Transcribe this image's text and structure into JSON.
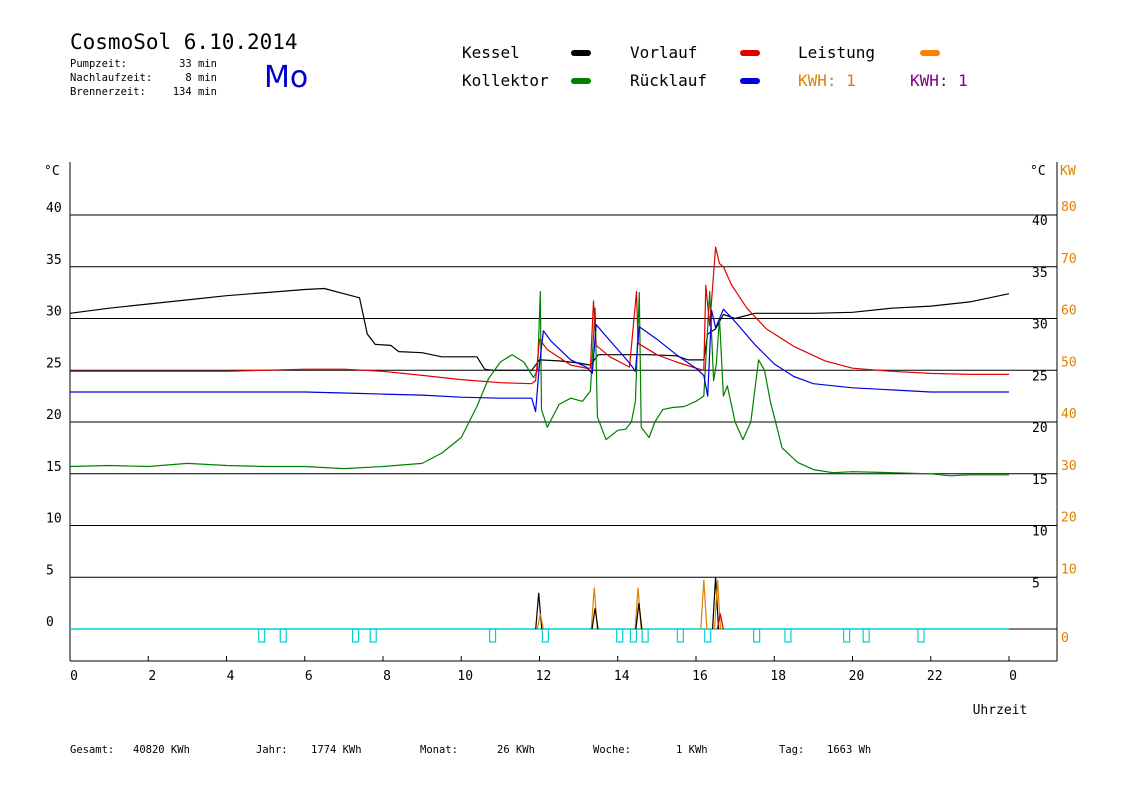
{
  "header": {
    "title": "CosmoSol 6.10.2014",
    "day": "Mo",
    "info": [
      {
        "label": "Pumpzeit:",
        "value": "33 min"
      },
      {
        "label": "Nachlaufzeit:",
        "value": "8 min"
      },
      {
        "label": "Brennerzeit:",
        "value": "134 min"
      }
    ]
  },
  "legend": {
    "kessel": {
      "label": "Kessel",
      "color": "#000000"
    },
    "kollektor": {
      "label": "Kollektor",
      "color": "#008000"
    },
    "vorlauf": {
      "label": "Vorlauf",
      "color": "#e00000"
    },
    "ruecklauf": {
      "label": "Rücklauf",
      "color": "#0000e0"
    },
    "leistung": {
      "label": "Leistung",
      "color": "#ff8000"
    },
    "kwh1": {
      "label": "KWH: 1",
      "color": "#e08000"
    },
    "kwh2": {
      "label": "KWH: 1",
      "color": "#800080"
    }
  },
  "footer": {
    "gesamt_label": "Gesamt:",
    "gesamt_value": "40820 KWh",
    "jahr_label": "Jahr:",
    "jahr_value": "1774 KWh",
    "monat_label": "Monat:",
    "monat_value": "26 KWh",
    "woche_label": "Woche:",
    "woche_value": "1 KWh",
    "tag_label": "Tag:",
    "tag_value": "1663 Wh"
  },
  "chart_data": {
    "type": "line",
    "xlabel": "Uhrzeit",
    "ylabel_left": "°C",
    "ylabel_right_temp": "°C",
    "ylabel_right_power": "KW",
    "xlim": [
      0,
      24
    ],
    "ylim": [
      0,
      40
    ],
    "x_ticks": [
      "0",
      "2",
      "4",
      "6",
      "8",
      "10",
      "12",
      "14",
      "16",
      "18",
      "20",
      "22",
      "0"
    ],
    "y_ticks_left": [
      "0",
      "5",
      "10",
      "15",
      "20",
      "25",
      "30",
      "35",
      "40"
    ],
    "y_ticks_right_temp": [
      "5",
      "10",
      "15",
      "20",
      "25",
      "30",
      "35",
      "40"
    ],
    "y_ticks_right_power": [
      "0",
      "10",
      "20",
      "30",
      "40",
      "50",
      "60",
      "70",
      "80"
    ],
    "colors": {
      "power_axis": "#e08000",
      "pump_marker": "#00d0d0",
      "leistung": "#ff8000"
    },
    "grid": true,
    "series": [
      {
        "name": "Kessel",
        "color": "#000000",
        "points": [
          [
            0,
            30.5
          ],
          [
            1,
            31
          ],
          [
            2,
            31.4
          ],
          [
            3,
            31.8
          ],
          [
            4,
            32.2
          ],
          [
            5,
            32.5
          ],
          [
            6,
            32.8
          ],
          [
            6.5,
            32.9
          ],
          [
            7,
            32.4
          ],
          [
            7.4,
            32
          ],
          [
            7.6,
            28.5
          ],
          [
            7.8,
            27.5
          ],
          [
            8.2,
            27.4
          ],
          [
            8.4,
            26.8
          ],
          [
            9,
            26.7
          ],
          [
            9.5,
            26.3
          ],
          [
            10.4,
            26.3
          ],
          [
            10.6,
            25.1
          ],
          [
            10.8,
            25
          ],
          [
            11.8,
            25
          ],
          [
            12,
            26
          ],
          [
            12.5,
            25.9
          ],
          [
            13,
            25.7
          ],
          [
            13.3,
            25.5
          ],
          [
            13.5,
            26.5
          ],
          [
            14.5,
            26.5
          ],
          [
            14.8,
            26.5
          ],
          [
            15.5,
            26.4
          ],
          [
            15.8,
            26
          ],
          [
            16.2,
            26
          ],
          [
            16.3,
            28.5
          ],
          [
            16.5,
            29
          ],
          [
            16.7,
            30.4
          ],
          [
            17,
            30
          ],
          [
            17.5,
            30.5
          ],
          [
            18,
            30.5
          ],
          [
            19,
            30.5
          ],
          [
            20,
            30.6
          ],
          [
            21,
            31
          ],
          [
            22,
            31.2
          ],
          [
            23,
            31.6
          ],
          [
            24,
            32.4
          ]
        ]
      },
      {
        "name": "Kollektor",
        "color": "#008000",
        "points": [
          [
            0,
            15.7
          ],
          [
            1,
            15.8
          ],
          [
            2,
            15.7
          ],
          [
            3,
            16
          ],
          [
            4,
            15.8
          ],
          [
            5,
            15.7
          ],
          [
            6,
            15.7
          ],
          [
            7,
            15.5
          ],
          [
            8,
            15.7
          ],
          [
            9,
            16
          ],
          [
            9.5,
            17
          ],
          [
            10,
            18.5
          ],
          [
            10.4,
            21.5
          ],
          [
            10.7,
            24.2
          ],
          [
            11,
            25.8
          ],
          [
            11.3,
            26.5
          ],
          [
            11.6,
            25.8
          ],
          [
            11.85,
            24.3
          ],
          [
            11.95,
            25
          ],
          [
            12.02,
            32.6
          ],
          [
            12.05,
            21.2
          ],
          [
            12.2,
            19.5
          ],
          [
            12.5,
            21.7
          ],
          [
            12.8,
            22.3
          ],
          [
            13.1,
            22
          ],
          [
            13.3,
            23
          ],
          [
            13.42,
            31
          ],
          [
            13.48,
            20.5
          ],
          [
            13.7,
            18.3
          ],
          [
            14,
            19.2
          ],
          [
            14.2,
            19.3
          ],
          [
            14.35,
            20
          ],
          [
            14.45,
            22
          ],
          [
            14.55,
            32.5
          ],
          [
            14.6,
            19.5
          ],
          [
            14.8,
            18.5
          ],
          [
            14.95,
            20
          ],
          [
            15.15,
            21.2
          ],
          [
            15.4,
            21.4
          ],
          [
            15.7,
            21.5
          ],
          [
            16,
            22
          ],
          [
            16.2,
            22.5
          ],
          [
            16.35,
            32.6
          ],
          [
            16.45,
            24
          ],
          [
            16.52,
            25.6
          ],
          [
            16.6,
            30
          ],
          [
            16.7,
            22.5
          ],
          [
            16.8,
            23.5
          ],
          [
            17,
            20
          ],
          [
            17.2,
            18.3
          ],
          [
            17.4,
            20
          ],
          [
            17.6,
            26
          ],
          [
            17.75,
            25
          ],
          [
            17.9,
            22
          ],
          [
            18.2,
            17.5
          ],
          [
            18.6,
            16.1
          ],
          [
            19,
            15.4
          ],
          [
            19.5,
            15.1
          ],
          [
            20,
            15.2
          ],
          [
            21,
            15.1
          ],
          [
            22,
            15
          ],
          [
            22.5,
            14.8
          ],
          [
            23,
            14.9
          ],
          [
            24,
            14.9
          ]
        ]
      },
      {
        "name": "Vorlauf",
        "color": "#e00000",
        "points": [
          [
            0,
            24.9
          ],
          [
            2,
            24.9
          ],
          [
            4,
            24.9
          ],
          [
            6,
            25.1
          ],
          [
            7,
            25.1
          ],
          [
            8,
            24.9
          ],
          [
            9,
            24.5
          ],
          [
            10,
            24.1
          ],
          [
            11,
            23.8
          ],
          [
            11.8,
            23.7
          ],
          [
            11.9,
            24
          ],
          [
            12,
            28
          ],
          [
            12.2,
            27
          ],
          [
            12.8,
            25.5
          ],
          [
            13.2,
            25.2
          ],
          [
            13.3,
            25.2
          ],
          [
            13.38,
            31.7
          ],
          [
            13.45,
            27.4
          ],
          [
            13.8,
            26.3
          ],
          [
            14.3,
            25.3
          ],
          [
            14.48,
            32.6
          ],
          [
            14.52,
            27.6
          ],
          [
            15,
            26.5
          ],
          [
            15.5,
            25.8
          ],
          [
            16,
            25.2
          ],
          [
            16.2,
            25
          ],
          [
            16.25,
            33.2
          ],
          [
            16.35,
            29.3
          ],
          [
            16.5,
            36.9
          ],
          [
            16.6,
            35.3
          ],
          [
            16.7,
            35
          ],
          [
            16.9,
            33.3
          ],
          [
            17.3,
            31
          ],
          [
            17.8,
            29
          ],
          [
            18.5,
            27.3
          ],
          [
            19.3,
            25.9
          ],
          [
            20,
            25.2
          ],
          [
            21,
            24.9
          ],
          [
            22,
            24.7
          ],
          [
            23,
            24.6
          ],
          [
            24,
            24.6
          ]
        ]
      },
      {
        "name": "Rücklauf",
        "color": "#0000e0",
        "points": [
          [
            0,
            22.9
          ],
          [
            2,
            22.9
          ],
          [
            4,
            22.9
          ],
          [
            6,
            22.9
          ],
          [
            7,
            22.8
          ],
          [
            8,
            22.7
          ],
          [
            9,
            22.6
          ],
          [
            10,
            22.4
          ],
          [
            11,
            22.3
          ],
          [
            11.8,
            22.3
          ],
          [
            11.9,
            21
          ],
          [
            12,
            25.6
          ],
          [
            12.1,
            28.8
          ],
          [
            12.3,
            27.8
          ],
          [
            12.8,
            26
          ],
          [
            13.2,
            25.3
          ],
          [
            13.35,
            24.7
          ],
          [
            13.45,
            29.4
          ],
          [
            13.7,
            28.3
          ],
          [
            14.3,
            25.7
          ],
          [
            14.45,
            24.9
          ],
          [
            14.55,
            29.2
          ],
          [
            15,
            28
          ],
          [
            15.5,
            26.5
          ],
          [
            16,
            25.2
          ],
          [
            16.2,
            24.5
          ],
          [
            16.3,
            22.5
          ],
          [
            16.4,
            30.8
          ],
          [
            16.5,
            29.1
          ],
          [
            16.7,
            30.9
          ],
          [
            16.8,
            30.5
          ],
          [
            17,
            29.7
          ],
          [
            17.5,
            27.5
          ],
          [
            18,
            25.6
          ],
          [
            18.5,
            24.4
          ],
          [
            19,
            23.7
          ],
          [
            20,
            23.3
          ],
          [
            21,
            23.1
          ],
          [
            22,
            22.9
          ],
          [
            23,
            22.9
          ],
          [
            24,
            22.9
          ]
        ]
      }
    ],
    "power_spikes": [
      {
        "x": 11.98,
        "kw": 7,
        "color": "#000000"
      },
      {
        "x": 12.02,
        "kw": 3,
        "color": "#e08000"
      },
      {
        "x": 13.4,
        "kw": 8,
        "color": "#e08000"
      },
      {
        "x": 13.42,
        "kw": 4,
        "color": "#000000"
      },
      {
        "x": 14.52,
        "kw": 8,
        "color": "#e08000"
      },
      {
        "x": 14.54,
        "kw": 5,
        "color": "#000000"
      },
      {
        "x": 16.2,
        "kw": 9.5,
        "color": "#e08000"
      },
      {
        "x": 16.5,
        "kw": 10,
        "color": "#000000"
      },
      {
        "x": 16.55,
        "kw": 9.5,
        "color": "#e08000"
      },
      {
        "x": 16.62,
        "kw": 3,
        "color": "#e00000"
      }
    ],
    "pump_markers": [
      4.9,
      5.45,
      7.3,
      7.75,
      10.8,
      12.15,
      14.05,
      14.4,
      14.7,
      15.6,
      16.3,
      17.55,
      18.35,
      19.85,
      20.35,
      21.75
    ]
  }
}
